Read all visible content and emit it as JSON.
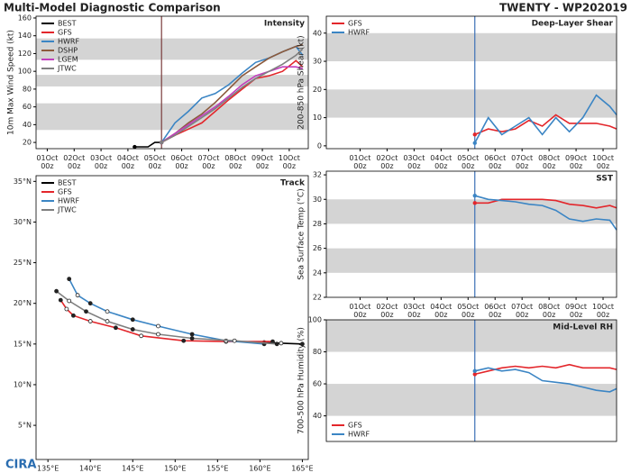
{
  "header": {
    "title": "Multi-Model Diagnostic Comparison",
    "storm": "TWENTY - WP202019",
    "logo": "CIRA"
  },
  "chart_data": [
    {
      "type": "line",
      "title": "Intensity",
      "ylabel": "10m Max Wind Speed (kt)",
      "x": [
        102,
        114,
        126,
        138,
        150,
        162,
        174,
        186,
        198,
        210,
        222,
        228
      ],
      "xlim": [
        -10,
        233
      ],
      "ylim": [
        13,
        162
      ],
      "xticks": [
        {
          "value": 0,
          "label": "01Oct 00z"
        },
        {
          "value": 24,
          "label": "02Oct 00z"
        },
        {
          "value": 48,
          "label": "03Oct 00z"
        },
        {
          "value": 72,
          "label": "04Oct 00z"
        },
        {
          "value": 96,
          "label": "05Oct 00z"
        },
        {
          "value": 120,
          "label": "06Oct 00z"
        },
        {
          "value": 144,
          "label": "07Oct 00z"
        },
        {
          "value": 168,
          "label": "08Oct 00z"
        },
        {
          "value": 192,
          "label": "09Oct 00z"
        },
        {
          "value": 216,
          "label": "10Oct 00z"
        }
      ],
      "yticks": [
        20,
        40,
        60,
        80,
        100,
        120,
        140,
        160
      ],
      "bands": [
        [
          34,
          64
        ],
        [
          83,
          96
        ],
        [
          113,
          137
        ]
      ],
      "vline": 102,
      "vline_color": "#7a3b3b",
      "legend": "upper left",
      "series": [
        {
          "name": "BEST",
          "color": "#000000",
          "x": [
            78,
            84,
            90,
            96,
            102
          ],
          "values": [
            15,
            15,
            15,
            20,
            20
          ]
        },
        {
          "name": "GFS",
          "color": "#e3262b",
          "values": [
            20,
            28,
            35,
            42,
            55,
            68,
            80,
            92,
            95,
            100,
            112,
            105
          ]
        },
        {
          "name": "HWRF",
          "color": "#3b85c4",
          "values": [
            20,
            42,
            55,
            70,
            75,
            85,
            98,
            110,
            115,
            122,
            128,
            118
          ]
        },
        {
          "name": "DSHP",
          "color": "#8c5a3c",
          "values": [
            20,
            30,
            42,
            52,
            65,
            80,
            95,
            105,
            115,
            122,
            128,
            130
          ]
        },
        {
          "name": "LGEM",
          "color": "#c13fbd",
          "values": [
            20,
            30,
            40,
            50,
            60,
            72,
            85,
            95,
            100,
            105,
            105,
            103
          ]
        },
        {
          "name": "JTWC",
          "color": "#7f7f7f",
          "values": [
            20,
            28,
            38,
            48,
            58,
            70,
            82,
            92,
            100,
            108,
            118,
            125
          ]
        }
      ]
    },
    {
      "type": "track",
      "title": "Track",
      "xlim": [
        133.6,
        165.7
      ],
      "ylim": [
        0.8,
        35.7
      ],
      "xticks": [
        {
          "value": 135,
          "label": "135°E"
        },
        {
          "value": 140,
          "label": "140°E"
        },
        {
          "value": 145,
          "label": "145°E"
        },
        {
          "value": 150,
          "label": "150°E"
        },
        {
          "value": 155,
          "label": "155°E"
        },
        {
          "value": 160,
          "label": "160°E"
        },
        {
          "value": 165,
          "label": "165°E"
        }
      ],
      "yticks": [
        {
          "value": 5,
          "label": "5°N"
        },
        {
          "value": 10,
          "label": "10°N"
        },
        {
          "value": 15,
          "label": "15°N"
        },
        {
          "value": 20,
          "label": "20°N"
        },
        {
          "value": 25,
          "label": "25°N"
        },
        {
          "value": 30,
          "label": "30°N"
        },
        {
          "value": 35,
          "label": "35°N"
        }
      ],
      "legend": "upper left",
      "series": [
        {
          "name": "BEST",
          "color": "#000000",
          "x": [
            165,
            162.5,
            160.5
          ],
          "values": [
            15,
            15.1,
            15.2
          ]
        },
        {
          "name": "GFS",
          "color": "#e3262b",
          "x": [
            161.5,
            156,
            151,
            146,
            143,
            140,
            138,
            137.2,
            136.5
          ],
          "values": [
            15.3,
            15.3,
            15.4,
            16,
            17,
            17.8,
            18.5,
            19.3,
            20.4
          ]
        },
        {
          "name": "HWRF",
          "color": "#3b85c4",
          "x": [
            160.5,
            156,
            152,
            148,
            145,
            142,
            140,
            138.5,
            137.5
          ],
          "values": [
            15,
            15.4,
            16.2,
            17.2,
            18,
            19,
            20,
            21,
            23
          ]
        },
        {
          "name": "JTWC",
          "color": "#7f7f7f",
          "x": [
            162,
            157,
            152,
            148,
            145,
            142,
            139.5,
            137.5,
            136
          ],
          "values": [
            15,
            15.4,
            15.7,
            16.2,
            16.8,
            17.8,
            19,
            20.3,
            21.5
          ]
        }
      ]
    },
    {
      "type": "line",
      "title": "Deep-Layer Shear",
      "ylabel": "200-850 hPa Shear (kt)",
      "x": [
        102,
        114,
        126,
        138,
        150,
        162,
        174,
        186,
        198,
        210,
        222,
        228
      ],
      "xlim": [
        -30,
        228
      ],
      "ylim": [
        -1,
        46
      ],
      "xticks": [
        {
          "value": 0,
          "label": "01Oct 00z"
        },
        {
          "value": 24,
          "label": "02Oct 00z"
        },
        {
          "value": 48,
          "label": "03Oct 00z"
        },
        {
          "value": 72,
          "label": "04Oct 00z"
        },
        {
          "value": 96,
          "label": "05Oct 00z"
        },
        {
          "value": 120,
          "label": "06Oct 00z"
        },
        {
          "value": 144,
          "label": "07Oct 00z"
        },
        {
          "value": 168,
          "label": "08Oct 00z"
        },
        {
          "value": 192,
          "label": "09Oct 00z"
        },
        {
          "value": 216,
          "label": "10Oct 00z"
        }
      ],
      "yticks": [
        0,
        10,
        20,
        30,
        40
      ],
      "bands": [
        [
          10,
          20
        ],
        [
          30,
          40
        ]
      ],
      "vline": 102,
      "vline_color": "#3b6fb5",
      "legend": "upper left",
      "series": [
        {
          "name": "GFS",
          "color": "#e3262b",
          "values": [
            4,
            6,
            5,
            6,
            9,
            7,
            11,
            8,
            8,
            8,
            7,
            6
          ]
        },
        {
          "name": "HWRF",
          "color": "#3b85c4",
          "values": [
            1,
            10,
            4,
            7,
            10,
            4,
            10,
            5,
            10,
            18,
            14,
            11
          ]
        }
      ]
    },
    {
      "type": "line",
      "title": "SST",
      "ylabel": "Sea Surface Temp (°C)",
      "x": [
        102,
        114,
        126,
        138,
        150,
        162,
        174,
        186,
        198,
        210,
        222,
        228
      ],
      "xlim": [
        -30,
        228
      ],
      "ylim": [
        22,
        32.3
      ],
      "xticks": [
        {
          "value": 0,
          "label": "01Oct 00z"
        },
        {
          "value": 24,
          "label": "02Oct 00z"
        },
        {
          "value": 48,
          "label": "03Oct 00z"
        },
        {
          "value": 72,
          "label": "04Oct 00z"
        },
        {
          "value": 96,
          "label": "05Oct 00z"
        },
        {
          "value": 120,
          "label": "06Oct 00z"
        },
        {
          "value": 144,
          "label": "07Oct 00z"
        },
        {
          "value": 168,
          "label": "08Oct 00z"
        },
        {
          "value": 192,
          "label": "09Oct 00z"
        },
        {
          "value": 216,
          "label": "10Oct 00z"
        }
      ],
      "yticks": [
        22,
        24,
        26,
        28,
        30,
        32
      ],
      "bands": [
        [
          24,
          26
        ],
        [
          28,
          30
        ]
      ],
      "vline": 102,
      "vline_color": "#3b6fb5",
      "series": [
        {
          "color": "#e3262b",
          "values": [
            29.7,
            29.7,
            30,
            30,
            30,
            30,
            29.9,
            29.6,
            29.5,
            29.3,
            29.5,
            29.3
          ]
        },
        {
          "color": "#3b85c4",
          "values": [
            30.3,
            30,
            29.9,
            29.8,
            29.6,
            29.5,
            29.1,
            28.4,
            28.2,
            28.4,
            28.3,
            27.5
          ]
        }
      ]
    },
    {
      "type": "line",
      "title": "Mid-Level RH",
      "ylabel": "700-500 hPa Humidity (%)",
      "x": [
        102,
        114,
        126,
        138,
        150,
        162,
        174,
        186,
        198,
        210,
        222,
        228
      ],
      "xlim": [
        -30,
        228
      ],
      "ylim": [
        24,
        100
      ],
      "yticks": [
        40,
        60,
        80,
        100
      ],
      "bands": [
        [
          40,
          60
        ],
        [
          80,
          100
        ]
      ],
      "vline": 102,
      "vline_color": "#3b6fb5",
      "legend": "lower left",
      "series": [
        {
          "name": "GFS",
          "color": "#e3262b",
          "values": [
            66,
            68,
            70,
            71,
            70,
            71,
            70,
            72,
            70,
            70,
            70,
            69
          ]
        },
        {
          "name": "HWRF",
          "color": "#3b85c4",
          "values": [
            68,
            70,
            68,
            69,
            67,
            62,
            61,
            60,
            58,
            56,
            55,
            57
          ]
        }
      ]
    }
  ]
}
